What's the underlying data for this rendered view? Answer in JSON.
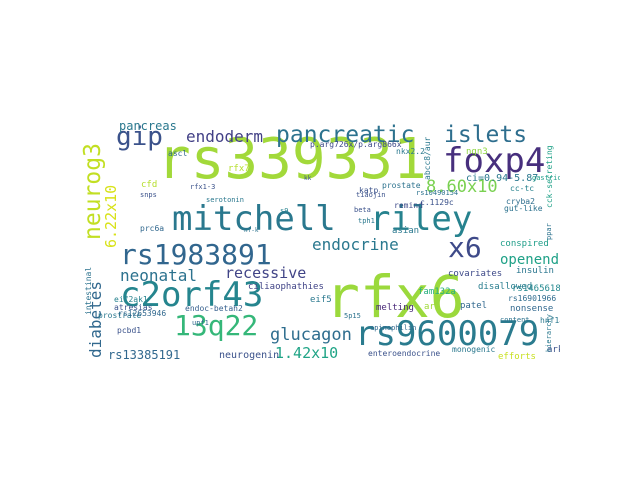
{
  "words": [
    {
      "text": "rs339331",
      "color": "#a2d93a"
    },
    {
      "text": "rfx6",
      "color": "#9bd93c"
    },
    {
      "text": "mitchell",
      "color": "#2a788e"
    },
    {
      "text": "riley",
      "color": "#26828e"
    },
    {
      "text": "foxp4",
      "color": "#472f7d"
    },
    {
      "text": "c2orf43",
      "color": "#25858e"
    },
    {
      "text": "rs9600079",
      "color": "#2a7b8e"
    },
    {
      "text": "rs1983891",
      "color": "#31668e"
    },
    {
      "text": "13q22",
      "color": "#35b779"
    },
    {
      "text": "gip",
      "color": "#3b528b"
    },
    {
      "text": "pancreatic",
      "color": "#2c728e"
    },
    {
      "text": "islets",
      "color": "#2e6e8e"
    },
    {
      "text": "neurog3",
      "color": "#c2df23"
    },
    {
      "text": "x6",
      "color": "#3e4a89"
    },
    {
      "text": "endocrine",
      "color": "#2a788e"
    },
    {
      "text": "glucagon",
      "color": "#2e6d8e"
    },
    {
      "text": "endoderm",
      "color": "#424086"
    },
    {
      "text": "8.60x10",
      "color": "#7ad151"
    },
    {
      "text": "6.22x10",
      "color": "#d8e219"
    },
    {
      "text": "recessive",
      "color": "#414487"
    },
    {
      "text": "neonatal",
      "color": "#2c728e"
    },
    {
      "text": "pancreas",
      "color": "#2a788e"
    },
    {
      "text": "diabetes",
      "color": "#31688e"
    },
    {
      "text": "1.42x10",
      "color": "#20a486"
    },
    {
      "text": "openendo",
      "color": "#1fa187"
    },
    {
      "text": "rs13385191",
      "color": "#31688e"
    },
    {
      "text": "neurogenin",
      "color": "#3b528b"
    },
    {
      "text": "ciliaophathies",
      "color": "#414487"
    },
    {
      "text": "conspired",
      "color": "#1f9e89"
    },
    {
      "text": "unkown",
      "color": "#2c728e"
    },
    {
      "text": "endoc-betah2",
      "color": "#355f8d"
    },
    {
      "text": "covariates",
      "color": "#3e4a89"
    },
    {
      "text": "rs1465618",
      "color": "#23888e"
    },
    {
      "text": "rs16901966",
      "color": "#2f6c8e"
    },
    {
      "text": "nonsense",
      "color": "#31688e"
    },
    {
      "text": "disallowed",
      "color": "#287d8e"
    },
    {
      "text": "insulin",
      "color": "#2a768e"
    },
    {
      "text": "ci=0.94-5.87",
      "color": "#2a788e"
    },
    {
      "text": "p.arg726x/p.arg866x",
      "color": "#3e4a89"
    },
    {
      "text": "cck-secreting",
      "color": "#1fa187"
    },
    {
      "text": "gut-like",
      "color": "#2c728e"
    },
    {
      "text": "cryba2",
      "color": "#2e6e8e"
    },
    {
      "text": "c.1129c",
      "color": "#3b528b"
    },
    {
      "text": "eif2ak1",
      "color": "#26828e"
    },
    {
      "text": "atresias",
      "color": "#3b528b"
    },
    {
      "text": "eif5",
      "color": "#2a788e"
    },
    {
      "text": "fam132a",
      "color": "#29af7f"
    },
    {
      "text": "arg",
      "color": "#a0da39"
    },
    {
      "text": "patel",
      "color": "#31688e"
    },
    {
      "text": "melting",
      "color": "#482878"
    },
    {
      "text": "intestinal",
      "color": "#2c728e"
    },
    {
      "text": "prostrate",
      "color": "#2a788e"
    },
    {
      "text": "pcbd1",
      "color": "#3b528b"
    },
    {
      "text": "rs12653946",
      "color": "#31688e"
    },
    {
      "text": "hnf1a",
      "color": "#2a788e"
    },
    {
      "text": "content",
      "color": "#2c728e"
    },
    {
      "text": "efforts",
      "color": "#c8e020"
    },
    {
      "text": "ark",
      "color": "#3b528b"
    },
    {
      "text": "monogenic",
      "color": "#2a788e"
    },
    {
      "text": "enteroendocrine",
      "color": "#3b528b"
    },
    {
      "text": "spinophilin",
      "color": "#31688e"
    },
    {
      "text": "ngn3",
      "color": "#8fd744"
    },
    {
      "text": "cfd",
      "color": "#b5de2b"
    },
    {
      "text": "ascl",
      "color": "#31688e"
    },
    {
      "text": "serotonin",
      "color": "#2a788e"
    },
    {
      "text": "snps",
      "color": "#3b528b"
    },
    {
      "text": "prostate",
      "color": "#2c728e"
    },
    {
      "text": "asian",
      "color": "#2a788e"
    },
    {
      "text": "remind",
      "color": "#3e4a89"
    },
    {
      "text": "abcc8/aur",
      "color": "#2a788e"
    },
    {
      "text": "katp",
      "color": "#3b528b"
    },
    {
      "text": "cc-tc",
      "color": "#26828e"
    },
    {
      "text": "ppar",
      "color": "#2c728e"
    },
    {
      "text": "gastric",
      "color": "#1f9e89"
    },
    {
      "text": "nkx2.2",
      "color": "#2a788e"
    },
    {
      "text": "rs10490154",
      "color": "#2c728e"
    },
    {
      "text": "rfx1-3",
      "color": "#3b528b"
    },
    {
      "text": "upf1",
      "color": "#31688e"
    },
    {
      "text": "rfx7",
      "color": "#b5de2b"
    },
    {
      "text": "prc6a",
      "color": "#31688e"
    },
    {
      "text": "beta",
      "color": "#3b528b"
    },
    {
      "text": "tph1",
      "color": "#2a788e"
    },
    {
      "text": "s9",
      "color": "#26828e"
    },
    {
      "text": "nf-k",
      "color": "#2c728e"
    },
    {
      "text": "kk",
      "color": "#3b528b"
    },
    {
      "text": "x6",
      "color": "#2a788e"
    },
    {
      "text": "hierarchy",
      "color": "#2a788e"
    },
    {
      "text": "5p15",
      "color": "#2c728e"
    },
    {
      "text": "tiaojin",
      "color": "#3b528b"
    }
  ]
}
